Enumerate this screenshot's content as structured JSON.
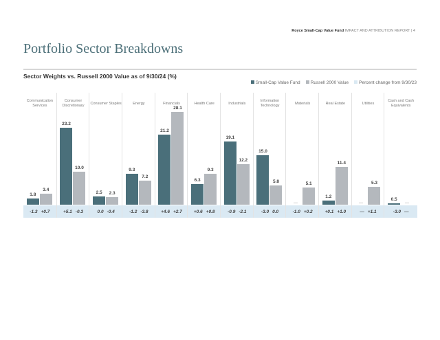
{
  "header": {
    "fund": "Royce Small-Cap Value Fund",
    "report": "IMPACT AND ATTRIBUTION REPORT | 4"
  },
  "title": "Portfolio Sector Breakdowns",
  "chart_data": {
    "type": "bar",
    "title": "Sector Weights vs. Russell 2000 Value as of 9/30/24 (%)",
    "legend_position": "top-right",
    "colors": {
      "fund": "#4a6f7a",
      "index": "#b4b8bd",
      "change": "#dae9f3"
    },
    "categories": [
      "Communication Services",
      "Consumer Discretionary",
      "Consumer Staples",
      "Energy",
      "Financials",
      "Health Care",
      "Industrials",
      "Information Technology",
      "Materials",
      "Real Estate",
      "Utilities",
      "Cash and Cash Equivalents"
    ],
    "series": [
      {
        "name": "Small-Cap Value Fund",
        "values": [
          1.8,
          23.2,
          2.5,
          9.3,
          21.2,
          6.3,
          19.1,
          15.0,
          null,
          1.2,
          null,
          0.5
        ],
        "labels": [
          "1.8",
          "23.2",
          "2.5",
          "9.3",
          "21.2",
          "6.3",
          "19.1",
          "15.0",
          "—",
          "1.2",
          "—",
          "0.5"
        ]
      },
      {
        "name": "Russell 2000 Value",
        "values": [
          3.4,
          10.0,
          2.3,
          7.2,
          28.1,
          9.3,
          12.2,
          5.8,
          5.1,
          11.4,
          5.3,
          null
        ],
        "labels": [
          "3.4",
          "10.0",
          "2.3",
          "7.2",
          "28.1",
          "9.3",
          "12.2",
          "5.8",
          "5.1",
          "11.4",
          "5.3",
          "—"
        ]
      }
    ],
    "change_legend": "Percent change from 9/30/23",
    "change": [
      [
        "-1.3",
        "+0.7"
      ],
      [
        "+5.1",
        "-0.3"
      ],
      [
        "0.0",
        "-0.4"
      ],
      [
        "-1.2",
        "-3.8"
      ],
      [
        "+4.6",
        "+2.7"
      ],
      [
        "+0.6",
        "+0.8"
      ],
      [
        "-0.9",
        "-2.1"
      ],
      [
        "-3.0",
        "0.0"
      ],
      [
        "-1.0",
        "+0.2"
      ],
      [
        "+0.1",
        "+1.0"
      ],
      [
        "—",
        "+1.1"
      ],
      [
        "-3.0",
        "—"
      ]
    ]
  }
}
